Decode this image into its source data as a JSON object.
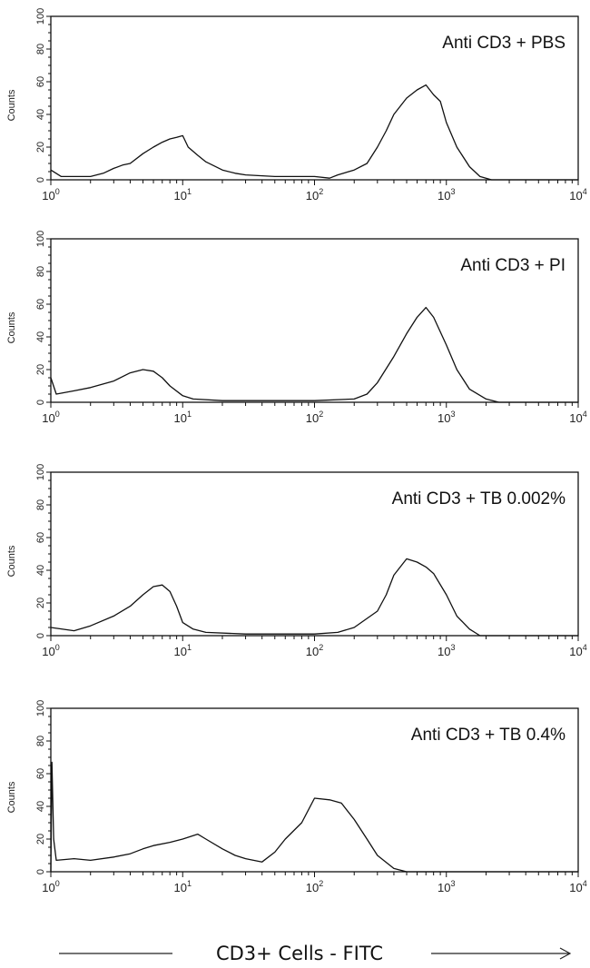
{
  "chart_data": [
    {
      "type": "line",
      "title": "Anti CD3 + PBS",
      "ylabel": "Counts",
      "xscale": "log",
      "xlim": [
        1,
        10000
      ],
      "ylim": [
        0,
        100
      ],
      "xticks": [
        "10^0",
        "10^1",
        "10^2",
        "10^3",
        "10^4"
      ],
      "yticks": [
        0,
        20,
        40,
        60,
        80,
        100
      ],
      "grid": false,
      "x": [
        1,
        1.2,
        1.5,
        2,
        2.5,
        3,
        3.5,
        4,
        5,
        6,
        7,
        8,
        9,
        10,
        11,
        13,
        15,
        20,
        25,
        30,
        50,
        80,
        100,
        130,
        150,
        200,
        250,
        300,
        350,
        400,
        500,
        600,
        700,
        800,
        900,
        1000,
        1200,
        1500,
        1800,
        2200,
        10000
      ],
      "y": [
        6,
        2,
        2,
        2,
        4,
        7,
        9,
        10,
        16,
        20,
        23,
        25,
        26,
        27,
        20,
        15,
        11,
        6,
        4,
        3,
        2,
        2,
        2,
        1,
        3,
        6,
        10,
        20,
        30,
        40,
        50,
        55,
        58,
        52,
        48,
        35,
        20,
        8,
        2,
        0,
        0
      ]
    },
    {
      "type": "line",
      "title": "Anti CD3 + PI",
      "ylabel": "Counts",
      "xscale": "log",
      "xlim": [
        1,
        10000
      ],
      "ylim": [
        0,
        100
      ],
      "xticks": [
        "10^0",
        "10^1",
        "10^2",
        "10^3",
        "10^4"
      ],
      "yticks": [
        0,
        20,
        40,
        60,
        80,
        100
      ],
      "grid": false,
      "x": [
        1,
        1.1,
        1.5,
        2,
        3,
        4,
        5,
        6,
        7,
        8,
        10,
        12,
        20,
        50,
        100,
        200,
        250,
        300,
        400,
        500,
        600,
        700,
        800,
        1000,
        1200,
        1500,
        2000,
        2500,
        10000
      ],
      "y": [
        15,
        5,
        7,
        9,
        13,
        18,
        20,
        19,
        15,
        10,
        4,
        2,
        1,
        1,
        1,
        2,
        5,
        12,
        28,
        42,
        52,
        58,
        52,
        35,
        20,
        8,
        2,
        0,
        0
      ]
    },
    {
      "type": "line",
      "title": "Anti CD3 + TB 0.002%",
      "ylabel": "Counts",
      "xscale": "log",
      "xlim": [
        1,
        10000
      ],
      "ylim": [
        0,
        100
      ],
      "xticks": [
        "10^0",
        "10^1",
        "10^2",
        "10^3",
        "10^4"
      ],
      "yticks": [
        0,
        20,
        40,
        60,
        80,
        100
      ],
      "grid": false,
      "x": [
        1,
        1.5,
        2,
        3,
        4,
        5,
        6,
        7,
        8,
        9,
        10,
        12,
        15,
        30,
        100,
        150,
        200,
        300,
        350,
        400,
        500,
        600,
        700,
        800,
        1000,
        1200,
        1500,
        1800,
        10000
      ],
      "y": [
        5,
        3,
        6,
        12,
        18,
        25,
        30,
        31,
        27,
        18,
        8,
        4,
        2,
        1,
        1,
        2,
        5,
        15,
        25,
        37,
        47,
        45,
        42,
        38,
        25,
        12,
        4,
        0,
        0
      ]
    },
    {
      "type": "line",
      "title": "Anti CD3 + TB 0.4%",
      "ylabel": "Counts",
      "xscale": "log",
      "xlim": [
        1,
        10000
      ],
      "ylim": [
        0,
        100
      ],
      "xticks": [
        "10^0",
        "10^1",
        "10^2",
        "10^3",
        "10^4"
      ],
      "yticks": [
        0,
        20,
        40,
        60,
        80,
        100
      ],
      "grid": false,
      "x": [
        1,
        1.02,
        1.05,
        1.1,
        1.5,
        2,
        3,
        4,
        5,
        6,
        8,
        10,
        13,
        15,
        20,
        25,
        30,
        40,
        50,
        60,
        80,
        100,
        130,
        160,
        200,
        250,
        300,
        400,
        500,
        10000
      ],
      "y": [
        0,
        67,
        20,
        7,
        8,
        7,
        9,
        11,
        14,
        16,
        18,
        20,
        23,
        20,
        14,
        10,
        8,
        6,
        12,
        20,
        30,
        45,
        44,
        42,
        32,
        20,
        10,
        2,
        0,
        0
      ]
    }
  ],
  "xaxis_title": "CD3+ Cells - FITC",
  "colors": {
    "line": "#111111",
    "background": "#ffffff"
  }
}
